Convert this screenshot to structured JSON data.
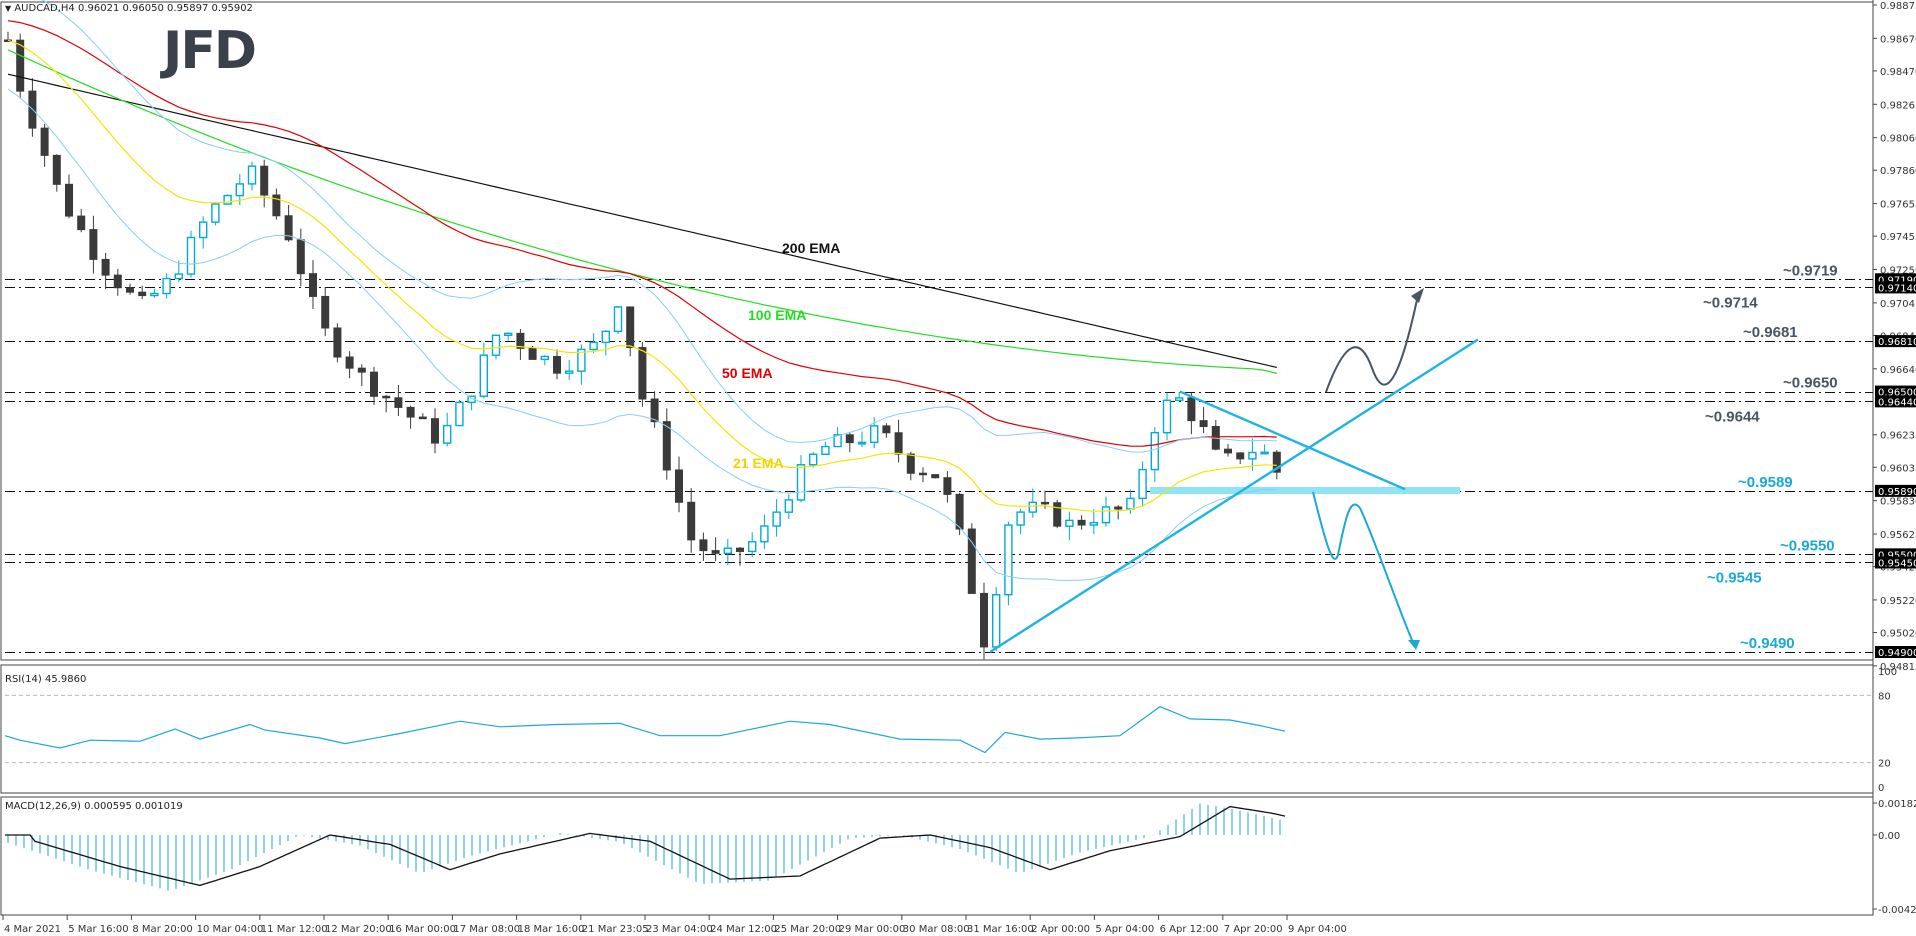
{
  "header": {
    "symbol_line": "AUDCAD,H4  0.96021 0.96050 0.95897 0.95902",
    "logo": "JFD"
  },
  "colors": {
    "ema21": "#f2e600",
    "ema50": "#e00000",
    "ema100": "#22dd22",
    "ema200": "#111111",
    "bollinger": "#87cefa",
    "bull_candle": "#00aad4",
    "bear_candle": "#3a3a3a",
    "trendline": "#1eb4e6",
    "support_label": "#1aa9d6",
    "resistance_label": "#4a5563",
    "up_arrow": "#4a5563",
    "down_arrow": "#1aa9d6",
    "support_zone": "#8fe3f5"
  },
  "price_axis": {
    "ticks": [
      "0.98875",
      "0.98670",
      "0.98470",
      "0.98265",
      "0.98060",
      "0.97860",
      "0.97655",
      "0.97455",
      "0.97250",
      "0.97045",
      "0.96845",
      "0.96640",
      "0.96235",
      "0.96035",
      "0.95830",
      "0.95625",
      "0.95425",
      "0.95220",
      "0.95020",
      "0.94815"
    ],
    "highlighted": [
      "0.97190",
      "0.97140",
      "0.96810",
      "0.96500",
      "0.96440",
      "0.95890",
      "0.95500",
      "0.95450",
      "0.94900"
    ]
  },
  "time_axis": {
    "labels": [
      "4 Mar 2021",
      "5 Mar 16:00",
      "8 Mar 20:00",
      "10 Mar 04:00",
      "11 Mar 12:00",
      "12 Mar 20:00",
      "16 Mar 00:00",
      "17 Mar 08:00",
      "18 Mar 16:00",
      "21 Mar 23:05",
      "23 Mar 04:00",
      "24 Mar 12:00",
      "25 Mar 20:00",
      "29 Mar 00:00",
      "30 Mar 08:00",
      "31 Mar 16:00",
      "2 Apr 00:00",
      "5 Apr 04:00",
      "6 Apr 12:00",
      "7 Apr 20:00",
      "9 Apr 04:00"
    ]
  },
  "annotations": {
    "ema_labels": [
      {
        "text": "200 EMA",
        "color": "#111111"
      },
      {
        "text": "100 EMA",
        "color": "#22dd22"
      },
      {
        "text": "50 EMA",
        "color": "#e00000"
      },
      {
        "text": "21 EMA",
        "color": "#f2d200"
      }
    ],
    "levels": [
      {
        "text": "~0.9719",
        "price": 0.9719,
        "type": "resistance"
      },
      {
        "text": "~0.9714",
        "price": 0.9714,
        "type": "resistance"
      },
      {
        "text": "~0.9681",
        "price": 0.9681,
        "type": "resistance"
      },
      {
        "text": "~0.9650",
        "price": 0.965,
        "type": "resistance"
      },
      {
        "text": "~0.9644",
        "price": 0.9644,
        "type": "resistance"
      },
      {
        "text": "~0.9589",
        "price": 0.9589,
        "type": "support"
      },
      {
        "text": "~0.9550",
        "price": 0.955,
        "type": "support"
      },
      {
        "text": "~0.9545",
        "price": 0.9545,
        "type": "support"
      },
      {
        "text": "~0.9490",
        "price": 0.949,
        "type": "support"
      }
    ]
  },
  "rsi": {
    "label": "RSI(14) 45.9860",
    "axis": [
      "100",
      "80",
      "20",
      "0"
    ]
  },
  "macd": {
    "label": "MACD(12,26,9) 0.000595 0.001019",
    "axis": [
      "0.001825",
      "0.00",
      "-0.004226"
    ]
  },
  "chart_data": [
    {
      "type": "candlestick",
      "title": "AUDCAD,H4",
      "ohlc_last": {
        "open": 0.96021,
        "high": 0.9605,
        "low": 0.95897,
        "close": 0.95902
      },
      "x_range": [
        "4 Mar 2021",
        "9 Apr 04:00"
      ],
      "ylim": [
        0.94815,
        0.98875
      ],
      "series": [
        {
          "name": "21 EMA",
          "approx_last": 0.9606
        },
        {
          "name": "50 EMA",
          "approx_last": 0.9598
        },
        {
          "name": "100 EMA",
          "approx_last": 0.9622
        },
        {
          "name": "200 EMA",
          "approx_last": 0.9665
        }
      ],
      "horizontal_levels": [
        0.9719,
        0.9714,
        0.9681,
        0.965,
        0.9644,
        0.9589,
        0.955,
        0.9545,
        0.949
      ],
      "trendlines": [
        {
          "name": "rising support",
          "from": {
            "x": "31 Mar 16:00",
            "y": 0.949
          },
          "to": {
            "x": "beyond 9 Apr",
            "y": 0.9682
          }
        },
        {
          "name": "falling resistance",
          "from": {
            "x": "6 Apr 12:00",
            "y": 0.965
          },
          "to": {
            "x": "beyond 9 Apr",
            "y": 0.9593
          }
        }
      ],
      "scenarios": [
        {
          "direction": "up",
          "path": "0.9650 -> 0.9681 -> 0.9650 -> 0.9714"
        },
        {
          "direction": "down",
          "path": "0.9589 -> 0.9550 -> 0.9589 -> 0.9490"
        }
      ]
    },
    {
      "type": "line",
      "title": "RSI(14)",
      "last_value": 45.986,
      "ylim": [
        0,
        100
      ],
      "levels": [
        20,
        80
      ]
    },
    {
      "type": "bar",
      "title": "MACD(12,26,9)",
      "values_last": {
        "main": 0.000595,
        "signal": 0.001019
      },
      "ylim": [
        -0.004226,
        0.001825
      ]
    }
  ]
}
